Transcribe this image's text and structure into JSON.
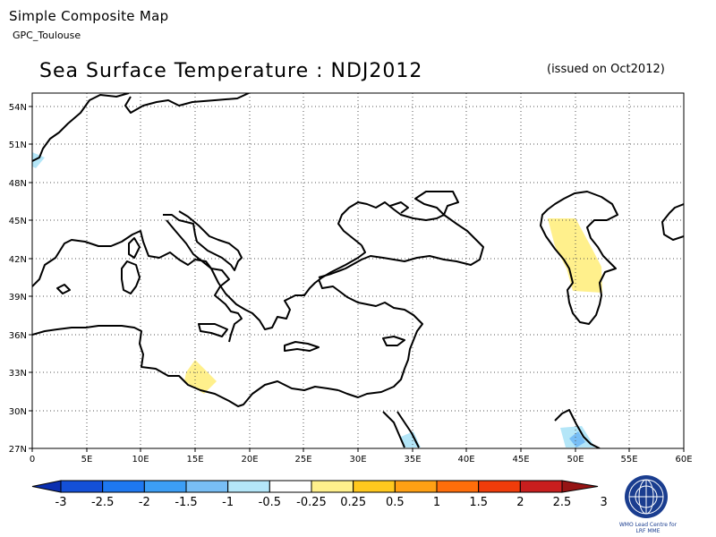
{
  "header": {
    "product": "Simple Composite Map",
    "centre": "GPC_Toulouse",
    "title": "Sea Surface Temperature : NDJ2012",
    "issued": "(issued on Oct2012)"
  },
  "map": {
    "lon_range": [
      0,
      60
    ],
    "lat_range": [
      27,
      55
    ],
    "lon_ticks": [
      "0",
      "5E",
      "10E",
      "15E",
      "20E",
      "25E",
      "30E",
      "35E",
      "40E",
      "45E",
      "50E",
      "55E",
      "60E"
    ],
    "lat_ticks": [
      "54N",
      "51N",
      "48N",
      "45N",
      "42N",
      "39N",
      "36N",
      "33N",
      "30N",
      "27N"
    ],
    "grid": "dotted"
  },
  "colorbar": {
    "labels": [
      "-3",
      "-2.5",
      "-2",
      "-1.5",
      "-1",
      "-0.5",
      "-0.25",
      "0.25",
      "0.5",
      "1",
      "1.5",
      "2",
      "2.5",
      "3"
    ],
    "colors": [
      "#0a2fb0",
      "#1450d8",
      "#1e78f0",
      "#3c9ef5",
      "#78bef5",
      "#b4e6f8",
      "#ffffff",
      "#fff08c",
      "#ffc81e",
      "#ffa014",
      "#ff6e0a",
      "#f03c0a",
      "#c81e1e",
      "#961414"
    ]
  },
  "logo": {
    "line1": "WMO Lead Centre for",
    "line2": "LRF MME"
  }
}
